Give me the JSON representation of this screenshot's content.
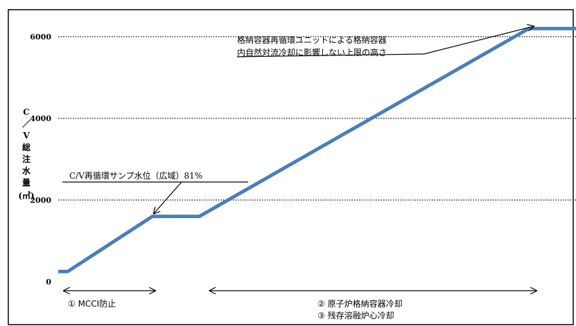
{
  "chart_data": {
    "type": "line",
    "ylabel_chars": [
      "C",
      "／",
      "V",
      "総",
      "注",
      "水",
      "量"
    ],
    "yunit": "(㎥)",
    "yticks": [
      0,
      2000,
      4000,
      6000
    ],
    "ylim": [
      0,
      6500
    ],
    "grid": "horizontal-dotted",
    "series": [
      {
        "points": [
          {
            "x": 0,
            "y": 250
          },
          {
            "x": 2,
            "y": 250
          },
          {
            "x": 20,
            "y": 1600
          },
          {
            "x": 30,
            "y": 1600
          },
          {
            "x": 100,
            "y": 6200
          },
          {
            "x": 110,
            "y": 6200
          }
        ],
        "color": "#4a7ebb"
      }
    ],
    "xlim": [
      0,
      110
    ],
    "annotations": [
      {
        "lines": [
          "格納容器再循環ユニットによる格納容器",
          "内自然対流冷却に影響しない上限の高さ"
        ],
        "target": {
          "x": 95,
          "y": 6200
        }
      },
      {
        "lines": [
          "C/V再循環サンプ水位（広域）81%"
        ],
        "target": {
          "x": 20,
          "y": 1600
        }
      }
    ],
    "phases": [
      {
        "from": 0,
        "to": 20,
        "labels": [
          "① MCCI防止"
        ]
      },
      {
        "from": 31,
        "to": 101,
        "labels": [
          "② 原子炉格納容器冷却",
          "③ 残存溶融炉心冷却"
        ]
      }
    ]
  }
}
